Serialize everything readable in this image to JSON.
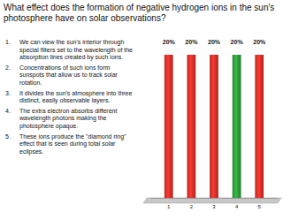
{
  "chart_data": {
    "type": "bar",
    "title": "What effect does the formation of negative hydrogen ions in the sun's photosphere have on solar observations?",
    "annotations": [
      {
        "label": "1.",
        "text": "We can view the sun's interior through special filters set to the wavelength of the absorption lines created by such ions."
      },
      {
        "label": "2.",
        "text": "Concentrations of such ions form sunspots that allow us to track solar rotation."
      },
      {
        "label": "3.",
        "text": "It divides the sun's atmosphere into three distinct, easily observable layers."
      },
      {
        "label": "4.",
        "text": "The extra electron absorbs different wavelength photons making the photosphere opaque."
      },
      {
        "label": "5.",
        "text": "These ions produce the \"diamond ring\" effect that is seen during total solar eclipses."
      }
    ],
    "categories": [
      "1",
      "2",
      "3",
      "4",
      "5"
    ],
    "values": [
      20,
      20,
      20,
      20,
      20
    ],
    "value_labels": [
      "20%",
      "20%",
      "20%",
      "20%",
      "20%"
    ],
    "colors": [
      "#e0302a",
      "#e0302a",
      "#e0302a",
      "#2e9e3a",
      "#e0302a"
    ],
    "ylim": [
      0,
      20
    ],
    "data_labels": true,
    "tick_labels": "x"
  }
}
